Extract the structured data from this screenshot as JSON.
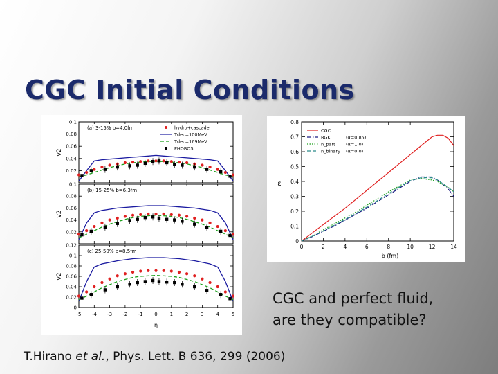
{
  "slide": {
    "title": "CGC Initial Conditions",
    "caption_line1": "CGC and perfect fluid,",
    "caption_line2": "are they compatible?",
    "citation_author": "T.Hirano ",
    "citation_etal": "et al.",
    "citation_rest": ", Phys. Lett. B 636, 299 (2006)"
  },
  "chart_data": [
    {
      "type": "line",
      "ylabel": "v2",
      "xlabel": "η",
      "xlim": [
        -5,
        5
      ],
      "xticks": [
        "-5",
        "-4",
        "-3",
        "-2",
        "-1",
        "0",
        "1",
        "2",
        "3",
        "4",
        "5"
      ],
      "legend": [
        "hydro+cascade",
        "Tdec=100MeV",
        "Tdec=169MeV",
        "PHOBOS"
      ],
      "panels": [
        {
          "label": "(a) 3-15% b=4.0fm",
          "ylim": [
            0,
            0.1
          ],
          "yticks": [
            "0",
            "0.02",
            "0.04",
            "0.06",
            "0.08",
            "0.1"
          ],
          "x": [
            -5,
            -4.5,
            -4,
            -3.5,
            -3,
            -2.5,
            -2,
            -1.5,
            -1,
            -0.5,
            0,
            0.5,
            1,
            1.5,
            2,
            2.5,
            3,
            3.5,
            4,
            4.5,
            5
          ],
          "series": [
            {
              "name": "Tdec=100MeV",
              "color": "#1a1aa0",
              "style": "solid",
              "values": [
                0.003,
                0.02,
                0.036,
                0.038,
                0.039,
                0.04,
                0.041,
                0.042,
                0.043,
                0.044,
                0.045,
                0.044,
                0.043,
                0.042,
                0.041,
                0.04,
                0.039,
                0.038,
                0.036,
                0.02,
                0.003
              ]
            },
            {
              "name": "Tdec=169MeV",
              "color": "#1aa01a",
              "style": "dashed",
              "values": [
                0.01,
                0.013,
                0.017,
                0.021,
                0.025,
                0.028,
                0.031,
                0.033,
                0.034,
                0.035,
                0.035,
                0.035,
                0.034,
                0.033,
                0.031,
                0.028,
                0.025,
                0.021,
                0.017,
                0.013,
                0.01
              ]
            },
            {
              "name": "hydro+cascade",
              "color": "#e02020",
              "style": "dots",
              "values": [
                0.013,
                0.017,
                0.022,
                0.026,
                0.029,
                0.031,
                0.033,
                0.034,
                0.035,
                0.036,
                0.036,
                0.036,
                0.035,
                0.034,
                0.033,
                0.031,
                0.029,
                0.026,
                0.022,
                0.017,
                0.013
              ]
            }
          ],
          "phobos": [
            [
              -4.8,
              0.012
            ],
            [
              -4.2,
              0.02
            ],
            [
              -3.3,
              0.022
            ],
            [
              -2.5,
              0.026
            ],
            [
              -1.7,
              0.028
            ],
            [
              -1.2,
              0.029
            ],
            [
              -0.7,
              0.032
            ],
            [
              -0.2,
              0.035
            ],
            [
              0.2,
              0.036
            ],
            [
              0.7,
              0.033
            ],
            [
              1.2,
              0.03
            ],
            [
              1.7,
              0.029
            ],
            [
              2.5,
              0.026
            ],
            [
              3.3,
              0.022
            ],
            [
              4.2,
              0.018
            ],
            [
              4.8,
              0.011
            ]
          ]
        },
        {
          "label": "(b) 15-25% b=6.3fm",
          "ylim": [
            0,
            0.1
          ],
          "yticks": [
            "0",
            "0.02",
            "0.04",
            "0.06",
            "0.08",
            "0.1"
          ],
          "x": [
            -5,
            -4.5,
            -4,
            -3.5,
            -3,
            -2.5,
            -2,
            -1.5,
            -1,
            -0.5,
            0,
            0.5,
            1,
            1.5,
            2,
            2.5,
            3,
            3.5,
            4,
            4.5,
            5
          ],
          "series": [
            {
              "name": "Tdec=100MeV",
              "color": "#1a1aa0",
              "style": "solid",
              "values": [
                0.007,
                0.035,
                0.052,
                0.056,
                0.058,
                0.06,
                0.061,
                0.062,
                0.063,
                0.064,
                0.064,
                0.064,
                0.063,
                0.062,
                0.061,
                0.06,
                0.058,
                0.056,
                0.052,
                0.035,
                0.007
              ]
            },
            {
              "name": "Tdec=169MeV",
              "color": "#1aa01a",
              "style": "dashed",
              "values": [
                0.01,
                0.016,
                0.022,
                0.028,
                0.033,
                0.037,
                0.041,
                0.044,
                0.046,
                0.047,
                0.048,
                0.047,
                0.046,
                0.044,
                0.041,
                0.037,
                0.033,
                0.028,
                0.022,
                0.016,
                0.01
              ]
            },
            {
              "name": "hydro+cascade",
              "color": "#e02020",
              "style": "dots",
              "values": [
                0.016,
                0.022,
                0.029,
                0.035,
                0.04,
                0.043,
                0.046,
                0.048,
                0.049,
                0.05,
                0.05,
                0.05,
                0.049,
                0.048,
                0.046,
                0.043,
                0.04,
                0.035,
                0.029,
                0.022,
                0.016
              ]
            }
          ],
          "phobos": [
            [
              -4.8,
              0.015
            ],
            [
              -4.2,
              0.021
            ],
            [
              -3.3,
              0.028
            ],
            [
              -2.5,
              0.034
            ],
            [
              -1.7,
              0.039
            ],
            [
              -1.2,
              0.041
            ],
            [
              -0.7,
              0.044
            ],
            [
              -0.2,
              0.045
            ],
            [
              0.2,
              0.043
            ],
            [
              0.7,
              0.041
            ],
            [
              1.2,
              0.04
            ],
            [
              1.7,
              0.038
            ],
            [
              2.5,
              0.033
            ],
            [
              3.3,
              0.027
            ],
            [
              4.2,
              0.021
            ],
            [
              4.8,
              0.014
            ]
          ]
        },
        {
          "label": "(c) 25-50% b=8.5fm",
          "ylim": [
            0,
            0.12
          ],
          "yticks": [
            "0",
            "0.02",
            "0.04",
            "0.06",
            "0.08",
            "0.1",
            "0.12"
          ],
          "x": [
            -5,
            -4.5,
            -4,
            -3.5,
            -3,
            -2.5,
            -2,
            -1.5,
            -1,
            -0.5,
            0,
            0.5,
            1,
            1.5,
            2,
            2.5,
            3,
            3.5,
            4,
            4.5,
            5
          ],
          "series": [
            {
              "name": "Tdec=100MeV",
              "color": "#1a1aa0",
              "style": "solid",
              "values": [
                0.012,
                0.05,
                0.078,
                0.084,
                0.087,
                0.09,
                0.092,
                0.094,
                0.095,
                0.096,
                0.096,
                0.096,
                0.095,
                0.094,
                0.092,
                0.09,
                0.087,
                0.084,
                0.078,
                0.05,
                0.012
              ]
            },
            {
              "name": "Tdec=169MeV",
              "color": "#1aa01a",
              "style": "dashed",
              "values": [
                0.015,
                0.022,
                0.03,
                0.038,
                0.044,
                0.05,
                0.054,
                0.058,
                0.06,
                0.061,
                0.062,
                0.061,
                0.06,
                0.058,
                0.054,
                0.05,
                0.044,
                0.038,
                0.03,
                0.022,
                0.015
              ]
            },
            {
              "name": "hydro+cascade",
              "color": "#e02020",
              "style": "dots",
              "values": [
                0.022,
                0.03,
                0.04,
                0.048,
                0.055,
                0.061,
                0.065,
                0.068,
                0.07,
                0.071,
                0.071,
                0.071,
                0.07,
                0.068,
                0.065,
                0.061,
                0.055,
                0.048,
                0.04,
                0.03,
                0.022
              ]
            }
          ],
          "phobos": [
            [
              -4.8,
              0.018
            ],
            [
              -4.2,
              0.025
            ],
            [
              -3.3,
              0.034
            ],
            [
              -2.5,
              0.04
            ],
            [
              -1.7,
              0.045
            ],
            [
              -1.2,
              0.048
            ],
            [
              -0.7,
              0.05
            ],
            [
              -0.2,
              0.052
            ],
            [
              0.2,
              0.05
            ],
            [
              0.7,
              0.049
            ],
            [
              1.2,
              0.048
            ],
            [
              1.7,
              0.045
            ],
            [
              2.5,
              0.04
            ],
            [
              3.3,
              0.033
            ],
            [
              4.2,
              0.025
            ],
            [
              4.8,
              0.017
            ]
          ]
        }
      ]
    },
    {
      "type": "line",
      "ylabel": "ε",
      "xlabel": "b (fm)",
      "xlim": [
        0,
        14
      ],
      "ylim": [
        0,
        0.8
      ],
      "xticks": [
        "0",
        "2",
        "4",
        "6",
        "8",
        "10",
        "12",
        "14"
      ],
      "yticks": [
        "0",
        "0.1",
        "0.2",
        "0.3",
        "0.4",
        "0.5",
        "0.6",
        "0.7",
        "0.8"
      ],
      "legend": [
        {
          "name": "CGC",
          "extra": ""
        },
        {
          "name": "BGK",
          "extra": "(α=0.85)"
        },
        {
          "name": "n_part",
          "extra": "(α=1.0)"
        },
        {
          "name": "n_binary",
          "extra": "(α=0.0)"
        }
      ],
      "x": [
        0,
        1,
        2,
        3,
        4,
        5,
        6,
        7,
        8,
        9,
        10,
        11,
        12,
        12.5,
        13,
        13.5,
        14
      ],
      "series": [
        {
          "name": "CGC",
          "color": "#e02020",
          "style": "solid",
          "values": [
            0,
            0.055,
            0.11,
            0.165,
            0.22,
            0.28,
            0.34,
            0.4,
            0.46,
            0.52,
            0.58,
            0.64,
            0.7,
            0.71,
            0.71,
            0.69,
            0.64
          ]
        },
        {
          "name": "BGK",
          "color": "#1a1a80",
          "style": "dashdot",
          "values": [
            0,
            0.03,
            0.065,
            0.1,
            0.14,
            0.18,
            0.22,
            0.265,
            0.31,
            0.355,
            0.4,
            0.43,
            0.43,
            0.41,
            0.38,
            0.35,
            0.3
          ]
        },
        {
          "name": "n_part",
          "color": "#1aa01a",
          "style": "dotted",
          "values": [
            0,
            0.035,
            0.075,
            0.115,
            0.155,
            0.195,
            0.24,
            0.285,
            0.33,
            0.37,
            0.41,
            0.42,
            0.41,
            0.4,
            0.38,
            0.36,
            0.33
          ]
        },
        {
          "name": "n_binary",
          "color": "#2a8a8a",
          "style": "dashed",
          "values": [
            0,
            0.032,
            0.068,
            0.105,
            0.145,
            0.185,
            0.228,
            0.272,
            0.318,
            0.362,
            0.405,
            0.425,
            0.425,
            0.41,
            0.385,
            0.36,
            0.33
          ]
        }
      ]
    }
  ]
}
